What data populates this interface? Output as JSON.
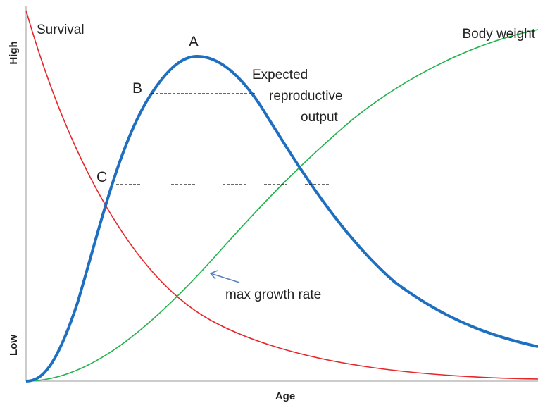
{
  "axes": {
    "y_high": "High",
    "y_low": "Low",
    "x_label": "Age"
  },
  "curves": {
    "survival": "Survival",
    "body_weight": "Body weight",
    "reproduction": [
      "Expected",
      "reproductive",
      "output"
    ]
  },
  "points": {
    "a": "A",
    "b": "B",
    "c": "C"
  },
  "annotation": "max growth rate"
}
